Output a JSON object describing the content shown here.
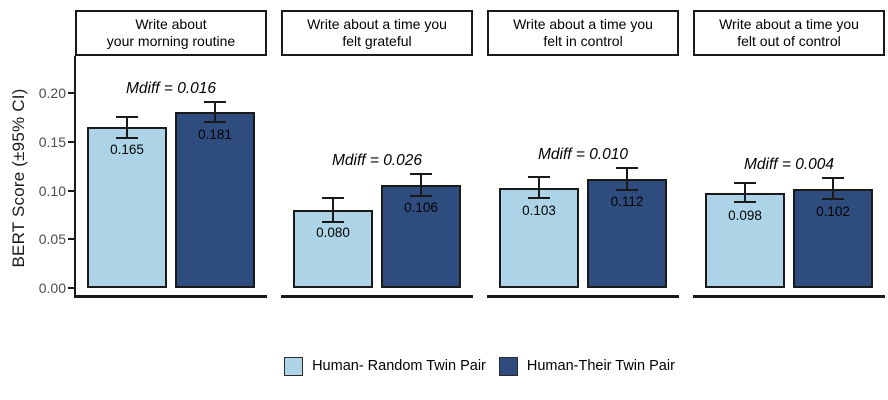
{
  "chart_data": {
    "type": "bar",
    "title": "",
    "xlabel": "",
    "ylabel": "BERT Score (±95% CI)",
    "ylim": [
      0,
      0.225
    ],
    "grid": false,
    "legend_position": "bottom",
    "yticks": [
      "0.00",
      "0.05",
      "0.10",
      "0.15",
      "0.20"
    ],
    "ytick_values": [
      0.0,
      0.05,
      0.1,
      0.15,
      0.2
    ],
    "categories": [
      "Write about your morning routine",
      "Write about a time you felt grateful",
      "Write about a time you felt in control",
      "Write about a time you felt out of control"
    ],
    "series": [
      {
        "name": "Human- Random Twin Pair",
        "color": "#add4e6",
        "values": [
          0.165,
          0.08,
          0.103,
          0.098
        ]
      },
      {
        "name": "Human-Their Twin Pair",
        "color": "#2e4d7e",
        "values": [
          0.181,
          0.106,
          0.112,
          0.102
        ]
      }
    ],
    "facets": [
      {
        "title_lines": [
          "Write about",
          "your morning routine"
        ],
        "mdiff": "Mdiff = 0.016",
        "bars": [
          {
            "series": "Human- Random Twin Pair",
            "value": 0.165,
            "label": "0.165",
            "ci": 0.011
          },
          {
            "series": "Human-Their Twin Pair",
            "value": 0.181,
            "label": "0.181",
            "ci": 0.01
          }
        ]
      },
      {
        "title_lines": [
          "Write about a time you",
          "felt grateful"
        ],
        "mdiff": "Mdiff = 0.026",
        "bars": [
          {
            "series": "Human- Random Twin Pair",
            "value": 0.08,
            "label": "0.080",
            "ci": 0.012
          },
          {
            "series": "Human-Their Twin Pair",
            "value": 0.106,
            "label": "0.106",
            "ci": 0.011
          }
        ]
      },
      {
        "title_lines": [
          "Write about a time you",
          "felt in control"
        ],
        "mdiff": "Mdiff = 0.010",
        "bars": [
          {
            "series": "Human- Random Twin Pair",
            "value": 0.103,
            "label": "0.103",
            "ci": 0.011
          },
          {
            "series": "Human-Their Twin Pair",
            "value": 0.112,
            "label": "0.112",
            "ci": 0.011
          }
        ]
      },
      {
        "title_lines": [
          "Write about a time you",
          "felt out of control"
        ],
        "mdiff": "Mdiff = 0.004",
        "bars": [
          {
            "series": "Human- Random Twin Pair",
            "value": 0.098,
            "label": "0.098",
            "ci": 0.01
          },
          {
            "series": "Human-Their Twin Pair",
            "value": 0.102,
            "label": "0.102",
            "ci": 0.011
          }
        ]
      }
    ],
    "colors": {
      "bar_light": "#add4e6",
      "bar_dark": "#2e4d7e",
      "outline": "#1a1a1a",
      "tick_label": "#4d4d4d",
      "background": "#ffffff"
    }
  }
}
